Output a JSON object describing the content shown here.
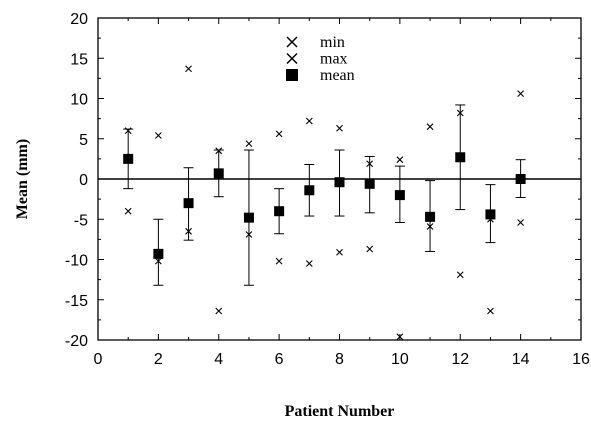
{
  "chart_data": {
    "type": "scatter",
    "title": "",
    "xlabel": "Patient Number",
    "ylabel": "Mean (mm)",
    "xlim": [
      0,
      16
    ],
    "ylim": [
      -20,
      20
    ],
    "x_ticks": [
      0,
      2,
      4,
      6,
      8,
      10,
      12,
      14,
      16
    ],
    "y_ticks": [
      -20,
      -15,
      -10,
      -5,
      0,
      5,
      10,
      15,
      20
    ],
    "x_tick_labels": [
      "0",
      "2",
      "4",
      "6",
      "8",
      "10",
      "12",
      "14",
      "16"
    ],
    "y_tick_labels": [
      "-20",
      "-15",
      "-10",
      "-5",
      "0",
      "5",
      "10",
      "15",
      "20"
    ],
    "grid": false,
    "reference_line_y": 0,
    "legend_position": "top-center",
    "legend": [
      {
        "name": "min",
        "marker": "x"
      },
      {
        "name": "max",
        "marker": "x"
      },
      {
        "name": "mean",
        "marker": "square"
      }
    ],
    "series": [
      {
        "name": "min",
        "marker": "x",
        "x": [
          1,
          2,
          3,
          4,
          5,
          6,
          7,
          8,
          9,
          10,
          11,
          12,
          13,
          14
        ],
        "y": [
          -4.0,
          -10.2,
          -6.5,
          -16.4,
          -6.9,
          -10.2,
          -10.5,
          -9.1,
          -8.7,
          -19.6,
          -5.9,
          -11.9,
          -16.4,
          -5.4
        ]
      },
      {
        "name": "max",
        "marker": "x",
        "x": [
          1,
          2,
          3,
          4,
          5,
          6,
          7,
          8,
          9,
          10,
          11,
          12,
          13,
          14
        ],
        "y": [
          6.0,
          5.4,
          13.7,
          3.5,
          4.4,
          5.6,
          7.2,
          6.3,
          1.9,
          2.4,
          6.5,
          8.2,
          -5.0,
          10.6
        ]
      },
      {
        "name": "mean",
        "marker": "square",
        "x": [
          1,
          2,
          3,
          4,
          5,
          6,
          7,
          8,
          9,
          10,
          11,
          12,
          13,
          14
        ],
        "y": [
          2.5,
          -9.3,
          -3.0,
          0.7,
          -4.8,
          -4.0,
          -1.4,
          -0.4,
          -0.6,
          -2.0,
          -4.7,
          2.7,
          -4.4,
          0.0
        ],
        "error_low": [
          -1.2,
          -13.2,
          -7.6,
          -2.2,
          -13.2,
          -6.8,
          -4.6,
          -4.6,
          -4.2,
          -5.4,
          -9.0,
          -3.8,
          -7.9,
          -2.3
        ],
        "error_high": [
          6.2,
          -5.0,
          1.4,
          3.6,
          3.6,
          -1.2,
          1.8,
          3.6,
          2.8,
          1.6,
          -0.2,
          9.2,
          -0.7,
          2.4
        ]
      }
    ]
  }
}
